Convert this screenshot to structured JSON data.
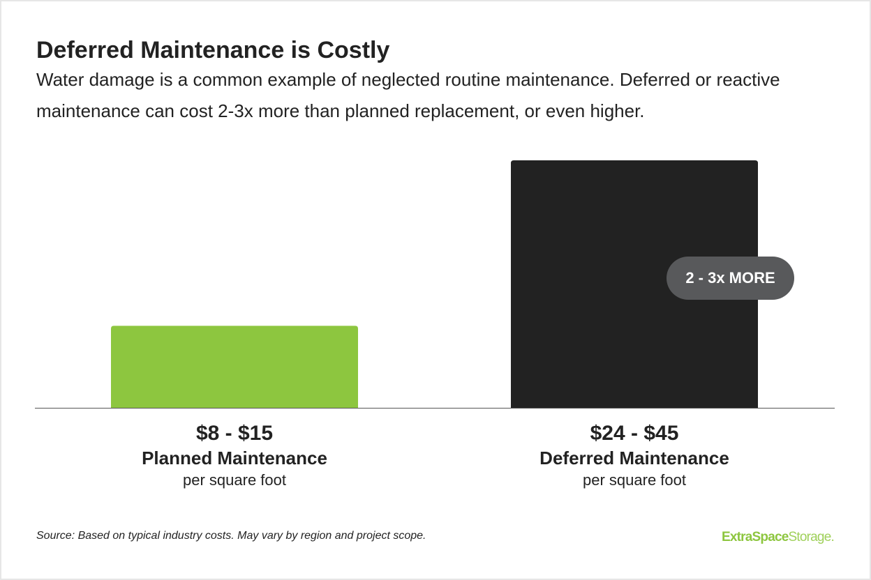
{
  "header": {
    "title": "Deferred Maintenance is Costly",
    "subtitle": "Water damage is a common example of neglected routine maintenance. Deferred or reactive maintenance can cost 2-3x more than planned replacement, or even higher."
  },
  "chart_data": {
    "type": "bar",
    "title": "Deferred Maintenance is Costly",
    "categories": [
      "Planned Maintenance",
      "Deferred Maintenance"
    ],
    "value_labels": [
      "$8 - $15",
      "$24 - $45"
    ],
    "unit_label": "per square foot",
    "ranges": [
      [
        8,
        15
      ],
      [
        24,
        45
      ]
    ],
    "values": [
      15,
      45
    ],
    "ylim": [
      0,
      45
    ],
    "colors": [
      "#8dc63f",
      "#222222"
    ],
    "annotation": "2 - 3x MORE",
    "grid": false,
    "legend": "none"
  },
  "colors": {
    "planned": "#8dc63f",
    "deferred": "#222222",
    "callout": "#58595b",
    "baseline": "#555555"
  },
  "footer": {
    "source": "Source: Based on typical industry costs. May vary by region and project scope.",
    "logo_part1": "ExtraSpace",
    "logo_part2": "Storage",
    "logo_suffix": "."
  }
}
